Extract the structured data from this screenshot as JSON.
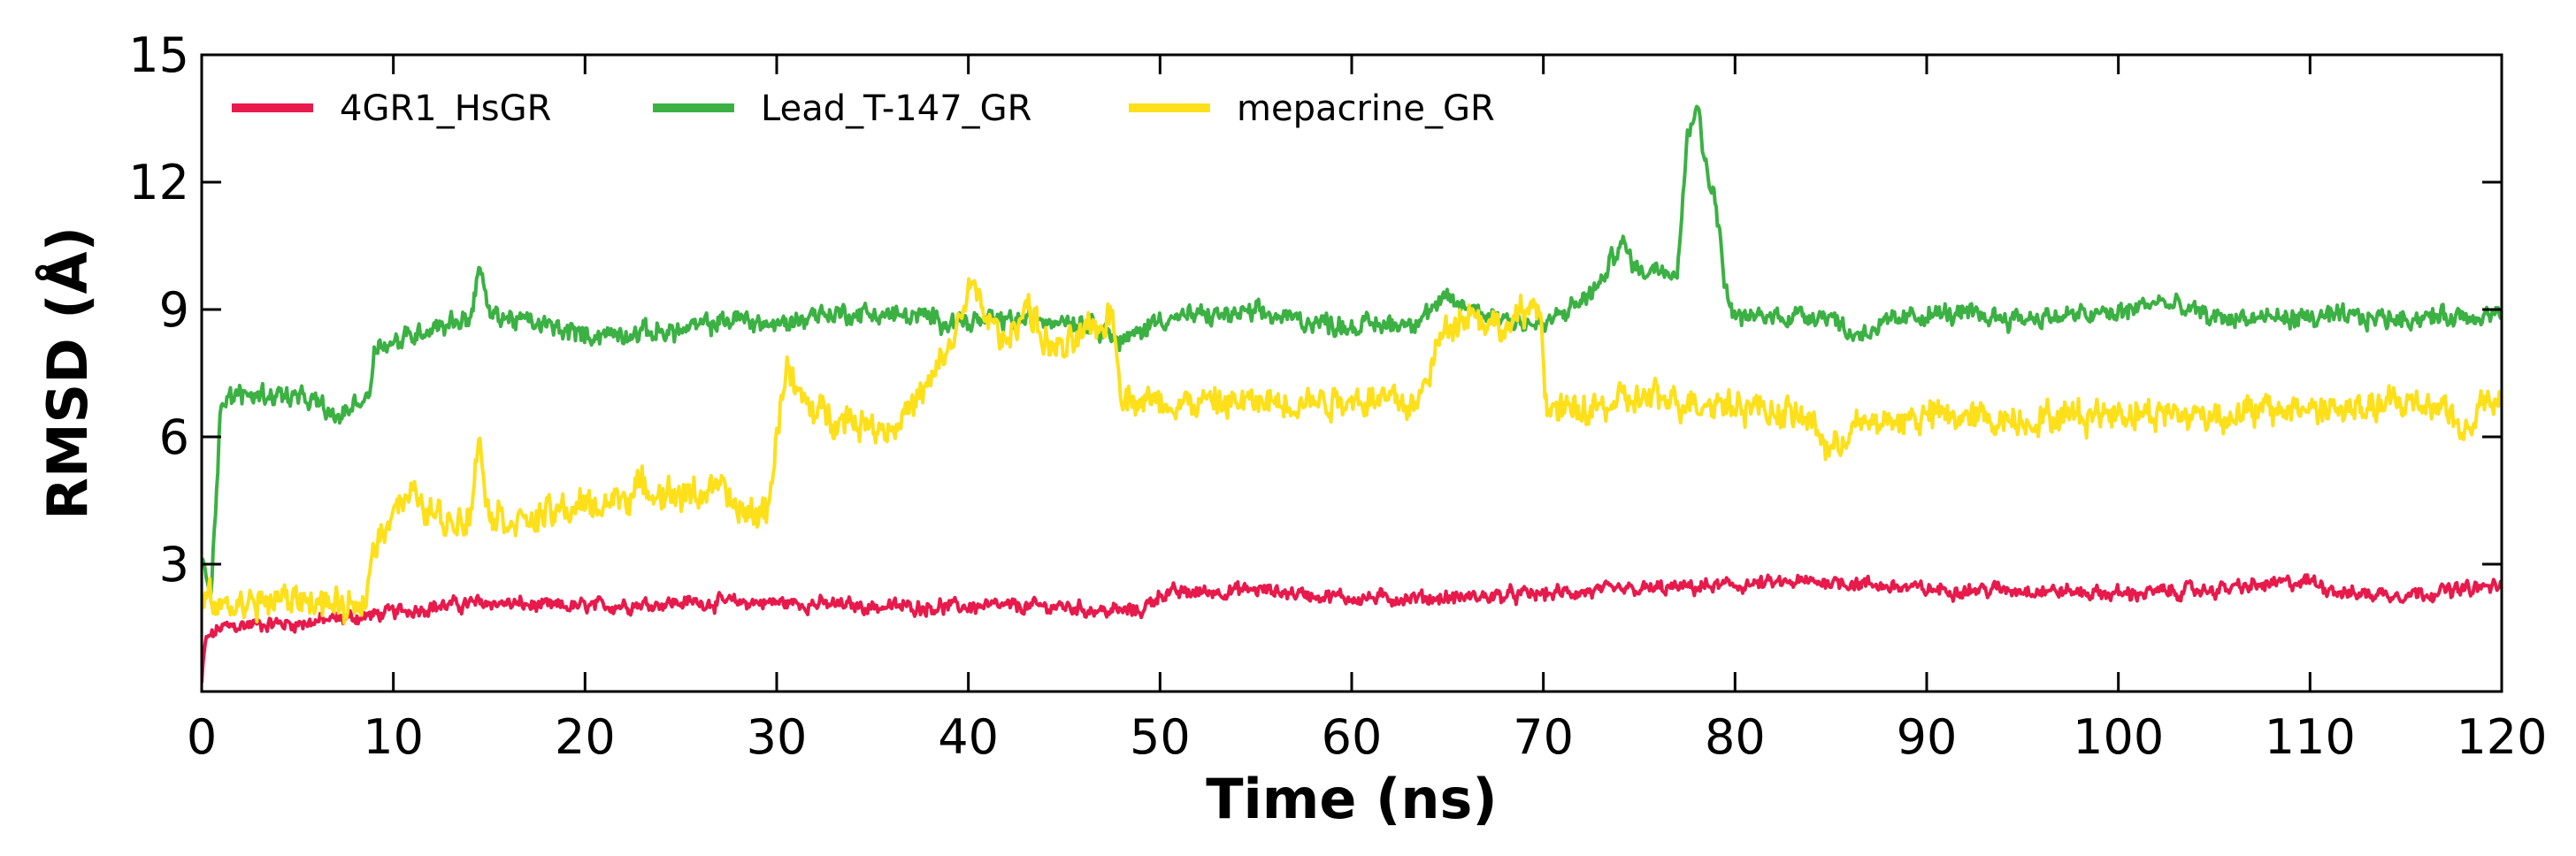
{
  "chart_data": {
    "type": "line",
    "title": "",
    "xlabel": "Time (ns)",
    "ylabel": "RMSD (Å)",
    "xlim": [
      0,
      120
    ],
    "ylim": [
      0,
      15
    ],
    "xticks": [
      0,
      10,
      20,
      30,
      40,
      50,
      60,
      70,
      80,
      90,
      100,
      110,
      120
    ],
    "yticks": [
      3,
      6,
      9,
      12,
      15
    ],
    "grid": false,
    "legend_position": "top-left",
    "series": [
      {
        "name": "4GR1_HsGR",
        "color": "#e8194b",
        "noise": 0.25,
        "x": [
          0,
          0.2,
          1,
          3,
          5,
          7,
          9,
          12,
          15,
          18,
          20,
          25,
          30,
          35,
          40,
          45,
          47,
          49,
          50,
          55,
          60,
          65,
          70,
          75,
          80,
          85,
          90,
          95,
          100,
          105,
          110,
          112,
          115,
          118,
          120
        ],
        "y": [
          0.2,
          1.2,
          1.5,
          1.6,
          1.6,
          1.7,
          1.8,
          2.0,
          2.1,
          2.0,
          2.0,
          2.1,
          2.1,
          2.0,
          2.0,
          2.0,
          1.9,
          1.9,
          2.3,
          2.4,
          2.2,
          2.2,
          2.3,
          2.4,
          2.5,
          2.6,
          2.4,
          2.4,
          2.3,
          2.4,
          2.6,
          2.3,
          2.3,
          2.4,
          2.5
        ]
      },
      {
        "name": "Lead_T-147_GR",
        "color": "#3bb143",
        "noise": 0.35,
        "x": [
          0,
          0.5,
          1,
          2,
          4,
          6,
          7,
          8,
          8.8,
          9,
          10,
          12,
          14,
          14.5,
          15,
          18,
          20,
          25,
          28,
          30,
          32,
          35,
          38,
          40,
          45,
          47,
          48,
          50,
          55,
          60,
          63,
          65,
          68,
          70,
          72,
          73,
          74,
          75,
          76,
          77,
          77.5,
          78,
          78.3,
          79,
          79.5,
          80,
          85,
          86,
          90,
          95,
          100,
          102,
          105,
          110,
          115,
          120
        ],
        "y": [
          3.0,
          2.5,
          6.8,
          7.0,
          7.0,
          6.8,
          6.4,
          6.8,
          7.0,
          8.2,
          8.2,
          8.6,
          8.8,
          10.0,
          8.9,
          8.6,
          8.4,
          8.5,
          8.8,
          8.6,
          8.9,
          8.9,
          8.8,
          8.7,
          8.8,
          8.6,
          8.2,
          8.8,
          8.9,
          8.6,
          8.7,
          9.2,
          8.8,
          8.6,
          9.2,
          9.6,
          10.6,
          9.9,
          10.0,
          10.0,
          13.0,
          14.0,
          12.8,
          11.5,
          9.5,
          8.8,
          8.9,
          8.4,
          8.9,
          8.8,
          8.9,
          9.2,
          8.8,
          8.8,
          8.8,
          8.9
        ]
      },
      {
        "name": "mepacrine_GR",
        "color": "#fde01a",
        "noise": 0.55,
        "x": [
          0,
          1,
          3,
          5,
          7,
          8.3,
          9,
          10,
          11,
          12,
          13,
          14,
          14.5,
          15,
          17,
          19,
          21,
          23,
          25,
          27,
          28,
          29.5,
          30.5,
          31,
          32,
          34,
          36,
          38,
          39.5,
          40,
          41,
          42,
          43,
          44,
          45,
          46,
          47,
          47.5,
          48,
          50,
          55,
          60,
          62,
          63.5,
          64,
          65,
          66,
          68,
          69,
          69.8,
          70.2,
          72,
          75,
          80,
          84,
          85,
          86,
          90,
          95,
          100,
          105,
          110,
          112,
          115,
          117,
          118,
          119,
          120
        ],
        "y": [
          2.2,
          2.0,
          2.1,
          2.2,
          2.0,
          1.8,
          3.4,
          4.4,
          4.6,
          4.2,
          4.0,
          4.2,
          6.0,
          4.2,
          4.0,
          4.3,
          4.4,
          4.8,
          4.6,
          4.8,
          4.2,
          4.2,
          7.8,
          7.0,
          6.6,
          6.4,
          6.2,
          7.2,
          8.6,
          9.6,
          8.8,
          8.2,
          9.2,
          8.2,
          8.0,
          8.4,
          8.6,
          9.0,
          7.0,
          6.8,
          6.8,
          6.9,
          6.9,
          6.7,
          7.6,
          8.6,
          9.0,
          8.5,
          8.9,
          9.2,
          6.6,
          6.6,
          6.9,
          6.8,
          6.4,
          5.6,
          6.2,
          6.5,
          6.4,
          6.6,
          6.5,
          6.7,
          6.6,
          6.8,
          6.8,
          6.0,
          6.8,
          6.7
        ]
      }
    ]
  }
}
